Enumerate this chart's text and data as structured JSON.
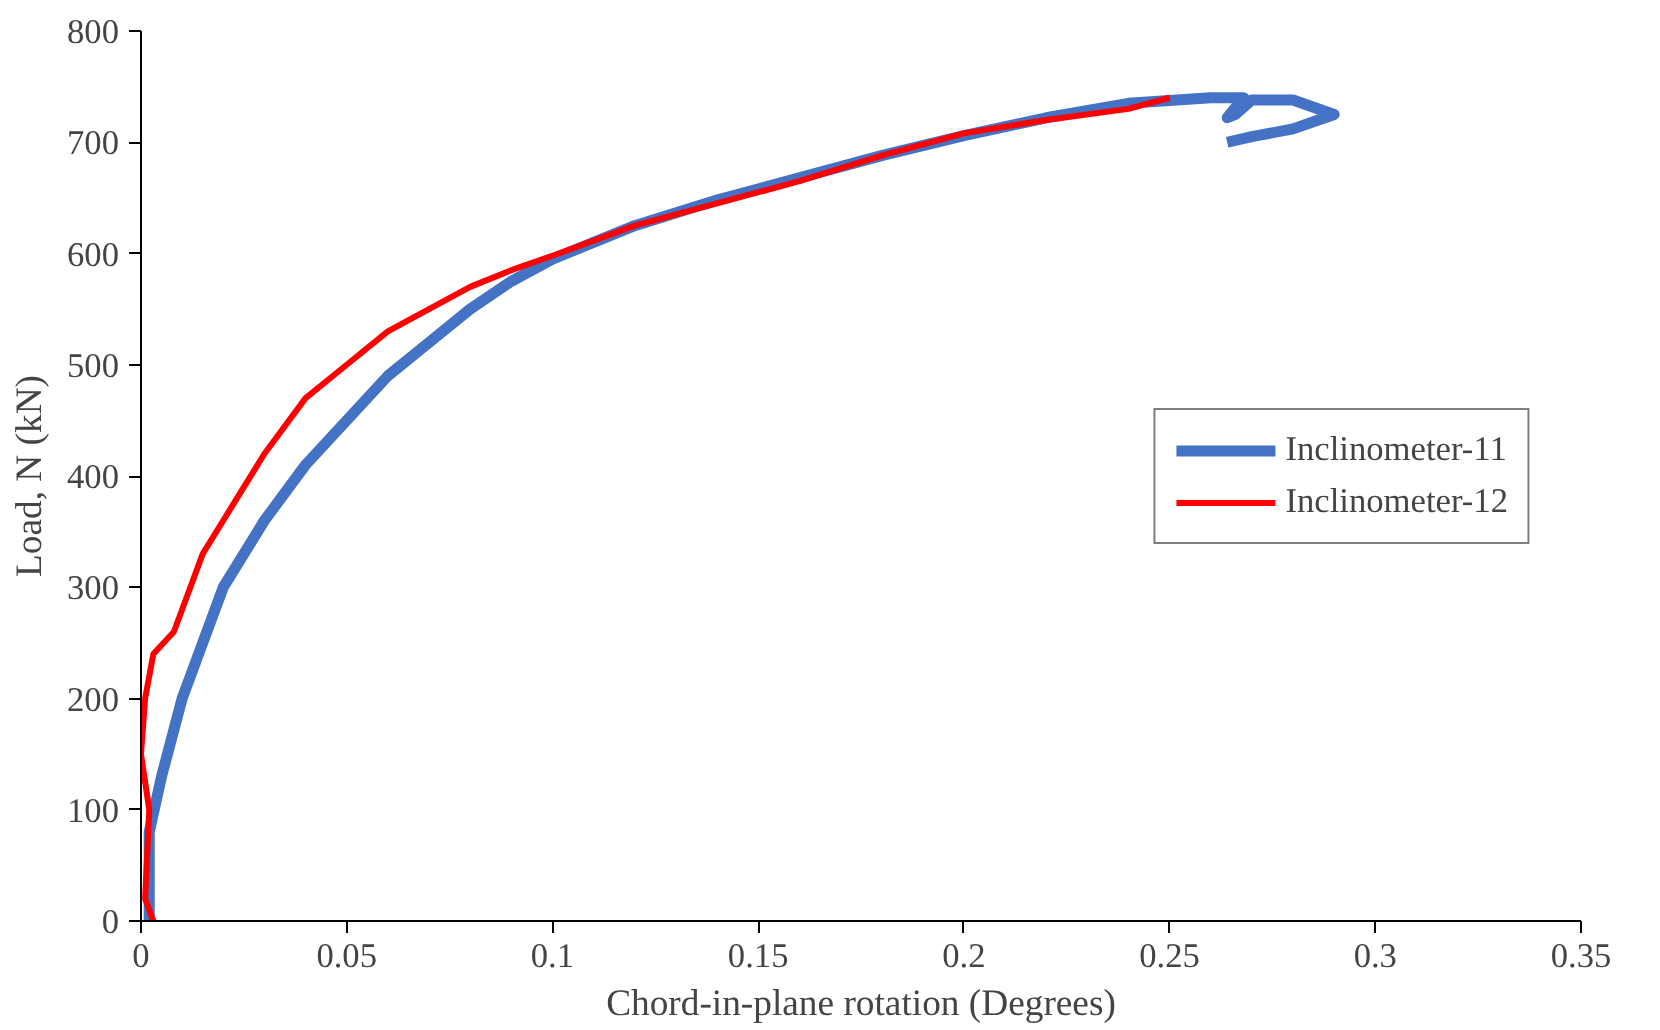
{
  "chart_data": {
    "type": "line",
    "xlabel": "Chord-in-plane rotation (Degrees)",
    "ylabel": "Load, N (kN)",
    "xlim": [
      0,
      0.35
    ],
    "xticks": [
      {
        "value": 0,
        "label": "0"
      },
      0.05,
      0.1,
      0.15,
      0.2,
      0.25,
      0.3,
      0.35
    ],
    "ylim": [
      0,
      800
    ],
    "yticks": [
      0,
      100,
      200,
      300,
      400,
      500,
      600,
      700,
      800
    ],
    "grid": false,
    "legend": "right",
    "marker": "none",
    "line_style": "solid",
    "series": [
      {
        "name": "Inclinometer-11",
        "color": "#4472c4",
        "x": [
          0.002,
          0.002,
          0.005,
          0.01,
          0.015,
          0.02,
          0.03,
          0.04,
          0.05,
          0.06,
          0.07,
          0.08,
          0.09,
          0.1,
          0.12,
          0.14,
          0.16,
          0.18,
          0.2,
          0.22,
          0.24,
          0.26,
          0.268,
          0.264,
          0.266,
          0.27,
          0.28,
          0.29,
          0.28,
          0.27,
          0.264
        ],
        "values": [
          0,
          80,
          130,
          200,
          250,
          300,
          360,
          410,
          450,
          490,
          520,
          550,
          575,
          595,
          625,
          648,
          668,
          688,
          706,
          722,
          735,
          740,
          740,
          722,
          725,
          738,
          738,
          725,
          712,
          705,
          700
        ]
      },
      {
        "name": "Inclinometer-12",
        "color": "#ff0000",
        "x": [
          0.003,
          0.001,
          0.002,
          0.0,
          0.001,
          0.003,
          0.008,
          0.012,
          0.015,
          0.02,
          0.025,
          0.03,
          0.04,
          0.05,
          0.06,
          0.07,
          0.08,
          0.09,
          0.1,
          0.12,
          0.14,
          0.16,
          0.18,
          0.2,
          0.22,
          0.24,
          0.25
        ],
        "values": [
          0,
          20,
          100,
          150,
          200,
          240,
          260,
          300,
          330,
          360,
          390,
          420,
          470,
          500,
          530,
          550,
          570,
          585,
          598,
          625,
          645,
          665,
          688,
          708,
          720,
          730,
          740
        ]
      }
    ]
  }
}
